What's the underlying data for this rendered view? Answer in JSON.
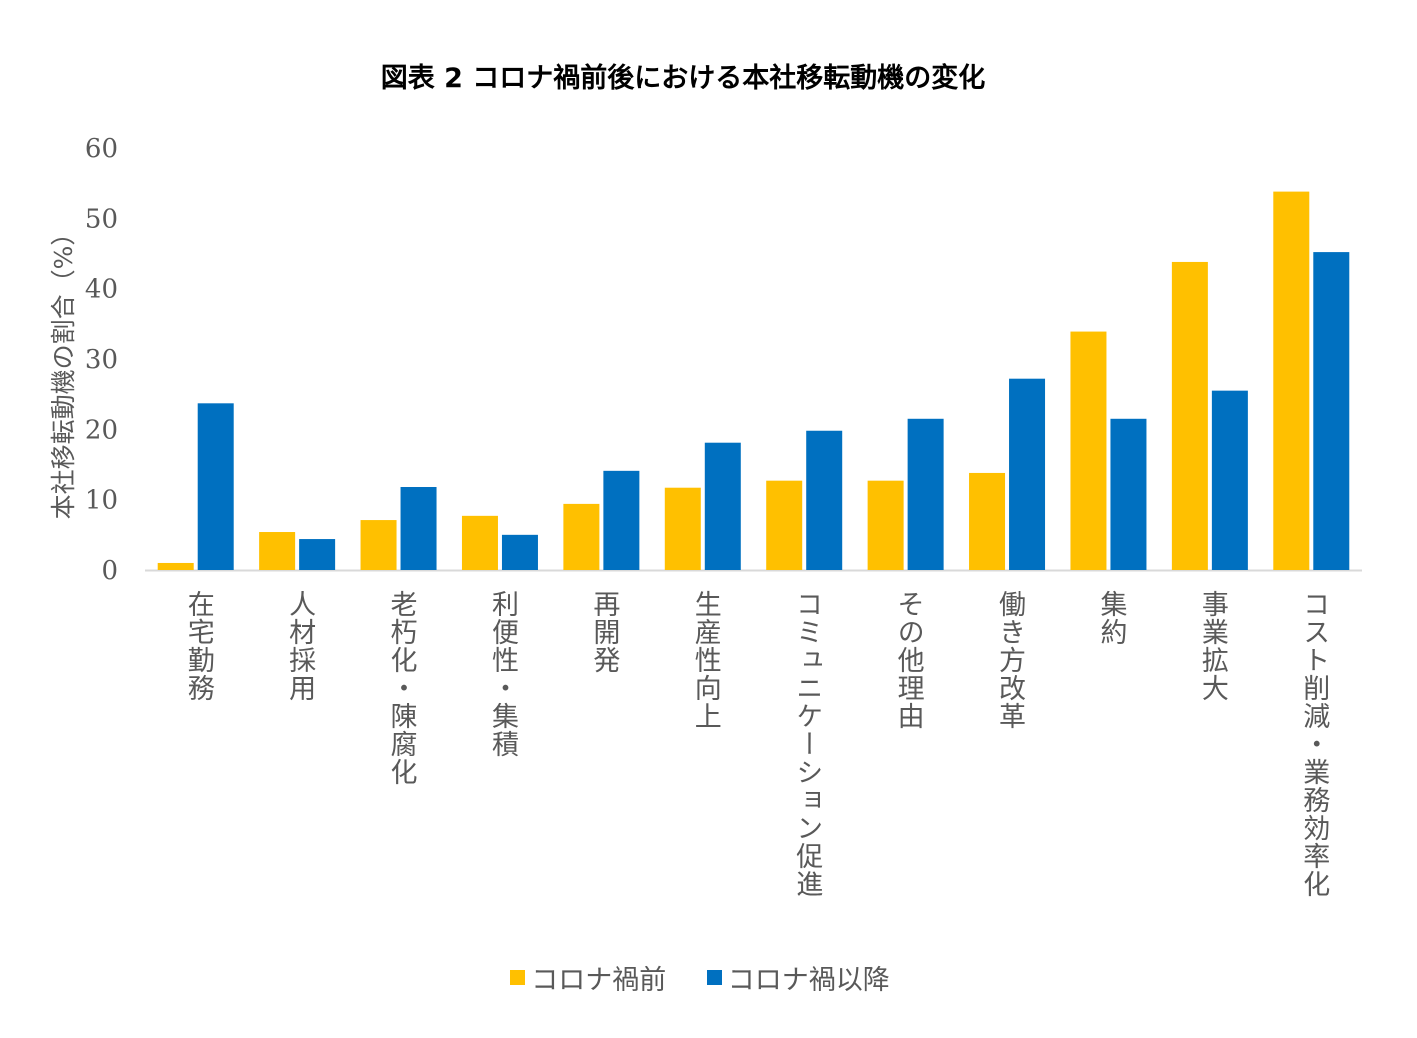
{
  "chart_data": {
    "type": "bar",
    "title": "図表 2 コロナ禍前後における本社移転動機の変化",
    "ylabel": "本社移転動機の割合（%）",
    "xlabel": "",
    "ylim": [
      0,
      60
    ],
    "yticks": [
      "0",
      "10",
      "20",
      "30",
      "40",
      "50",
      "60"
    ],
    "grid": false,
    "legend_position": "bottom",
    "categories": [
      "在宅勤務",
      "人材採用",
      "老朽化・陳腐化",
      "利便性・集積",
      "再開発",
      "生産性向上",
      "コミュニケーション促進",
      "その他理由",
      "働き方改革",
      "集約",
      "事業拡大",
      "コスト削減・業務効率化"
    ],
    "series": [
      {
        "name": "コロナ禍前",
        "color": "#FFC000",
        "values": [
          1.0,
          5.4,
          7.1,
          7.7,
          9.4,
          11.7,
          12.7,
          12.7,
          13.8,
          33.9,
          43.8,
          53.8
        ]
      },
      {
        "name": "コロナ禍以降",
        "color": "#0070C0",
        "values": [
          23.7,
          4.4,
          11.8,
          5.0,
          14.1,
          18.1,
          19.8,
          21.5,
          27.2,
          21.5,
          25.5,
          45.2
        ]
      }
    ]
  }
}
